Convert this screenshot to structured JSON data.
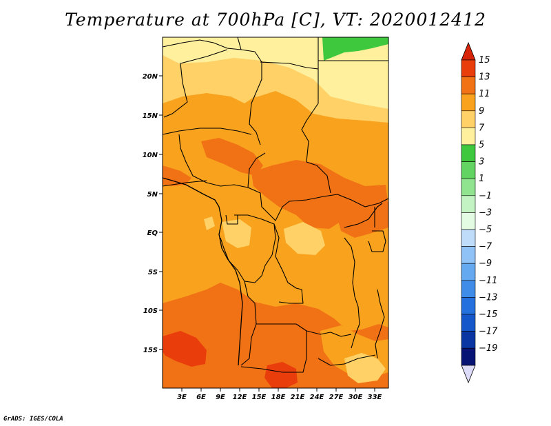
{
  "title": "Temperature at 700hPa [C], VT: 2020012412",
  "credit": "GrADS: IGES/COLA",
  "map": {
    "latitude_labels": [
      "20N",
      "15N",
      "10N",
      "5N",
      "EQ",
      "5S",
      "10S",
      "15S"
    ],
    "longitude_labels": [
      "3E",
      "6E",
      "9E",
      "12E",
      "15E",
      "18E",
      "21E",
      "24E",
      "27E",
      "30E",
      "33E"
    ],
    "field_colors": {
      "c1_3": "#3ec83e",
      "c5_7": "#fff09e",
      "c7_9": "#ffd166",
      "c9_11": "#f8a21e",
      "c11_13": "#f17115",
      "c13_15": "#ea3d0c"
    }
  },
  "colorbar": {
    "labels": [
      "15",
      "13",
      "11",
      "9",
      "7",
      "5",
      "3",
      "1",
      "−1",
      "−3",
      "−5",
      "−7",
      "−9",
      "−11",
      "−13",
      "−15",
      "−17",
      "−19"
    ],
    "colors": [
      "#ea3d0c",
      "#f17115",
      "#f8a21e",
      "#ffd166",
      "#fff09e",
      "#3ec83e",
      "#62d462",
      "#90e490",
      "#c3f3c3",
      "#e2fbe2",
      "#bfdcfb",
      "#8fc3f7",
      "#65a9f1",
      "#3f8be8",
      "#2470df",
      "#1457cb",
      "#0a36a3",
      "#081474"
    ],
    "top_arrow_color": "#d8250a",
    "bottom_arrow_color": "#dcdcf8"
  }
}
